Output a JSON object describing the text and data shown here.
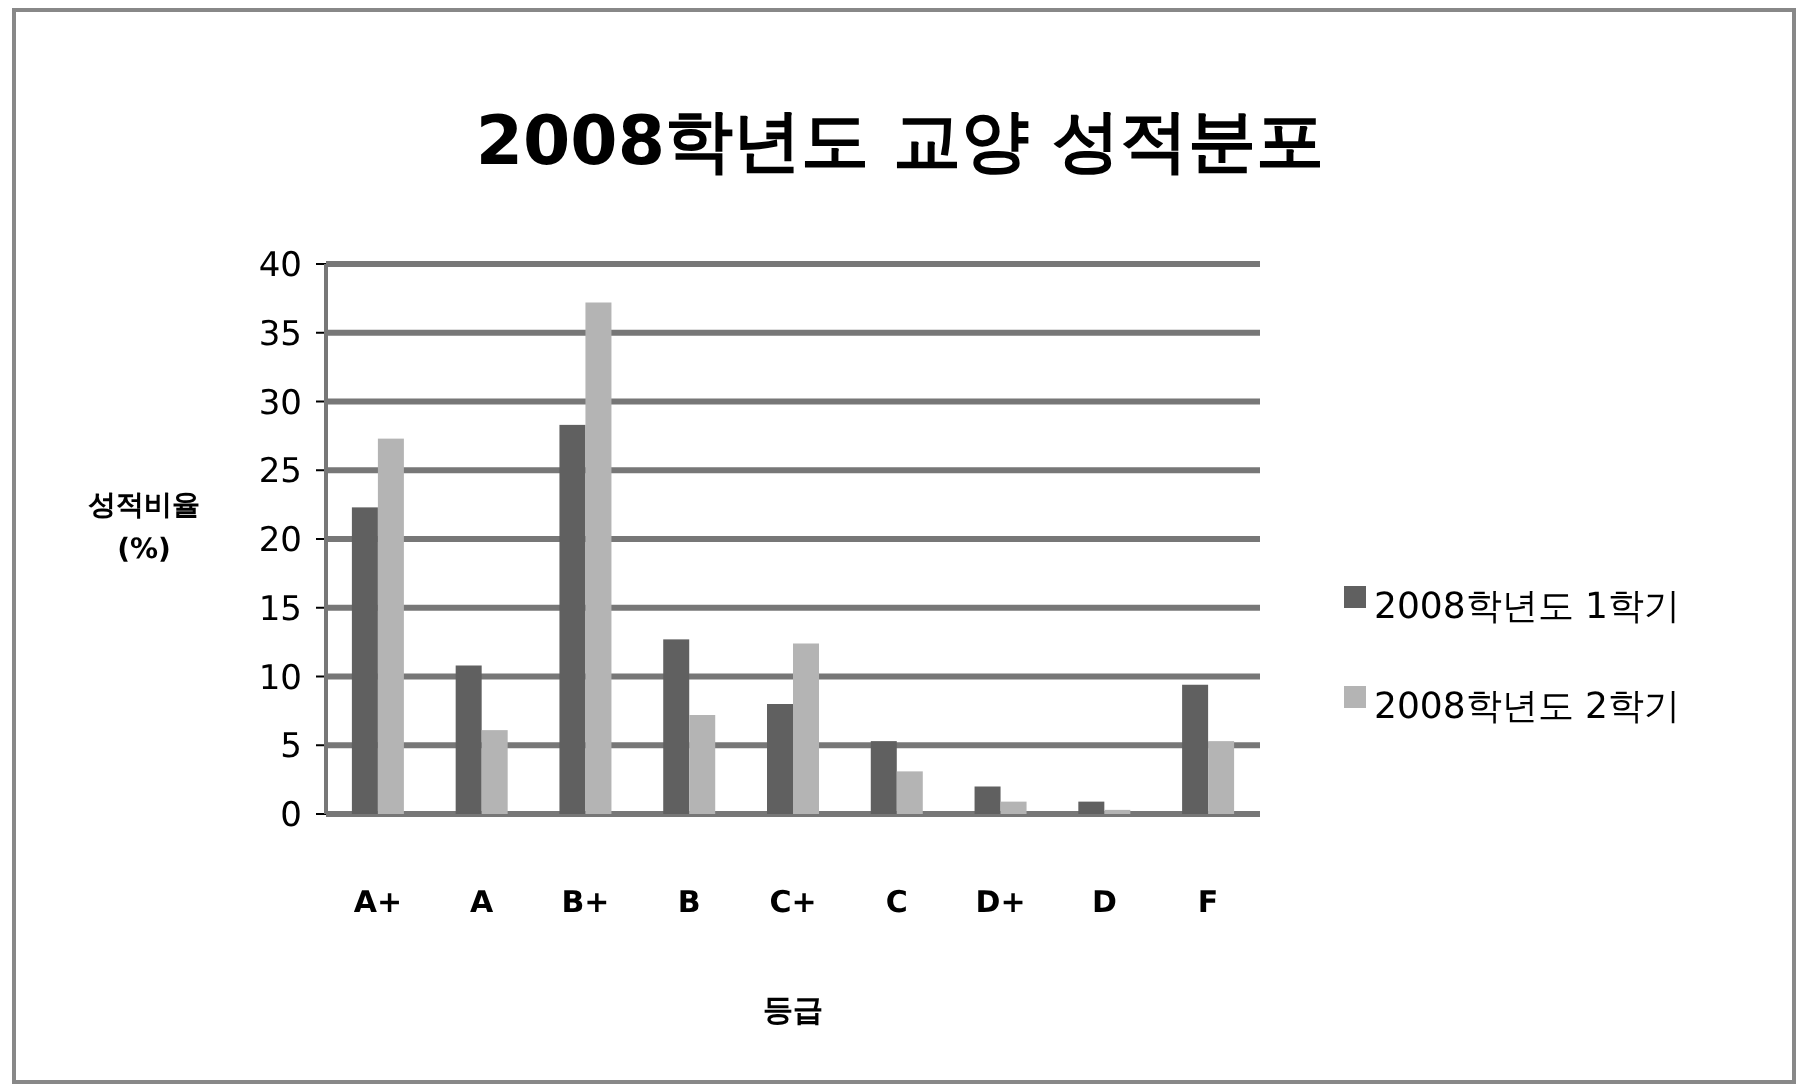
{
  "chart_data": {
    "type": "bar",
    "title": "2008학년도 교양 성적분포",
    "xlabel": "등급",
    "ylabel": "성적비율 (%)",
    "categories": [
      "A+",
      "A",
      "B+",
      "B",
      "C+",
      "C",
      "D+",
      "D",
      "F"
    ],
    "series": [
      {
        "name": "2008학년도 1학기",
        "color": "#606060",
        "values": [
          22.3,
          10.8,
          28.3,
          12.7,
          8.0,
          5.3,
          2.0,
          0.9,
          9.4
        ]
      },
      {
        "name": "2008학년도 2학기",
        "color": "#b4b4b4",
        "values": [
          27.3,
          6.1,
          37.2,
          7.2,
          12.4,
          3.1,
          0.9,
          0.3,
          5.3
        ]
      }
    ],
    "ylim": [
      0,
      40
    ],
    "yticks": [
      0,
      5,
      10,
      15,
      20,
      25,
      30,
      35,
      40
    ],
    "grid": "y",
    "legend": "right"
  }
}
